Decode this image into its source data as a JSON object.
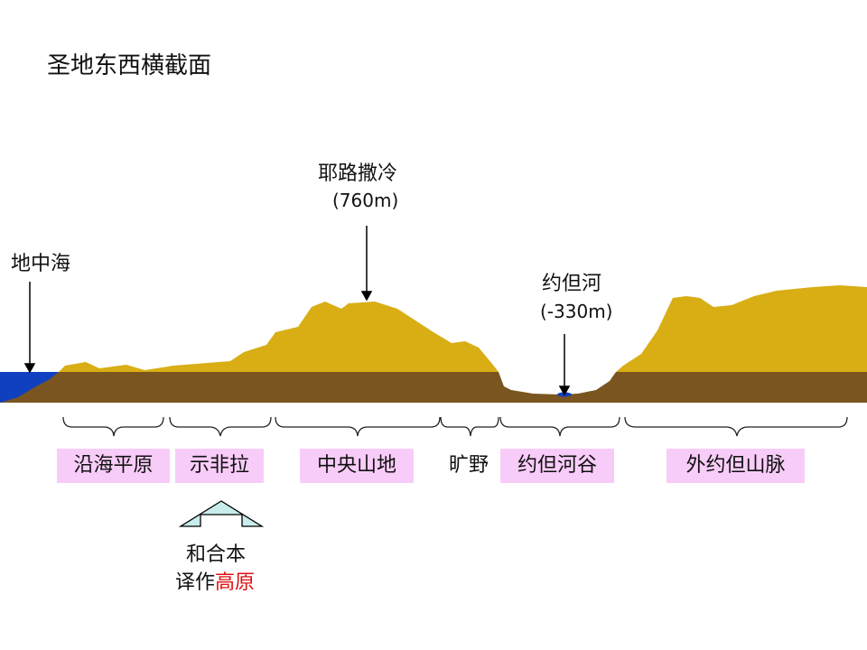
{
  "title": "圣地东西横截面",
  "annotations": {
    "sea": "地中海",
    "jerusalem": "耶路撒冷",
    "jerusalem_elev": "(760m)",
    "jordan": "约但河",
    "jordan_elev": "(-330m)"
  },
  "regions": [
    "沿海平原",
    "示非拉",
    "中央山地",
    "旷野",
    "约但河谷",
    "外约但山脉"
  ],
  "note": {
    "line1": "和合本",
    "line2_prefix": "译作",
    "line2_highlight": "高原"
  },
  "colors": {
    "highland": "#d8ae14",
    "ground": "#7a5520",
    "water": "#1040c0",
    "label_bg": "#f8ccf8",
    "highlight": "#e01010",
    "arrow_fill": "#c8ecec"
  }
}
